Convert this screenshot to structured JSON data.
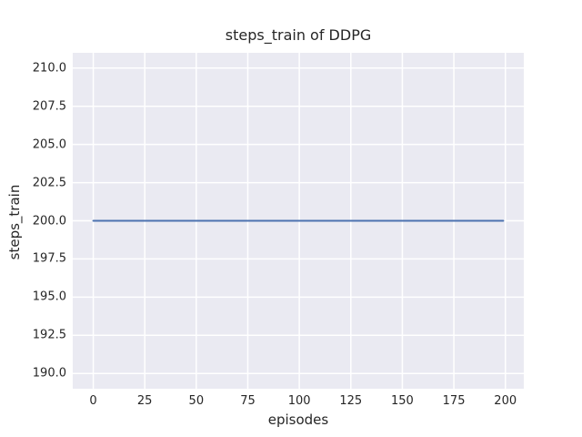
{
  "chart_data": {
    "type": "line",
    "title": "steps_train of DDPG",
    "xlabel": "episodes",
    "ylabel": "steps_train",
    "x_ticks": [
      0,
      25,
      50,
      75,
      100,
      125,
      150,
      175,
      200
    ],
    "x_tick_labels": [
      "0",
      "25",
      "50",
      "75",
      "100",
      "125",
      "150",
      "175",
      "200"
    ],
    "y_ticks": [
      190.0,
      192.5,
      195.0,
      197.5,
      200.0,
      202.5,
      205.0,
      207.5,
      210.0
    ],
    "y_tick_labels": [
      "190.0",
      "192.5",
      "195.0",
      "197.5",
      "200.0",
      "202.5",
      "205.0",
      "207.5",
      "210.0"
    ],
    "xlim": [
      -9.95,
      208.95
    ],
    "ylim": [
      189.0,
      211.0
    ],
    "grid": true,
    "legend": false,
    "series": [
      {
        "name": "steps_train",
        "x": [
          0,
          199
        ],
        "y": [
          200,
          200
        ],
        "color": "#4c72b0",
        "note": "constant value 200 for all episodes 0-199"
      }
    ],
    "style": {
      "figure_bg": "#ffffff",
      "plot_bg": "#eaeaf2",
      "grid_color": "#ffffff",
      "text_color": "#262626",
      "line_color": "#4c72b0"
    }
  }
}
